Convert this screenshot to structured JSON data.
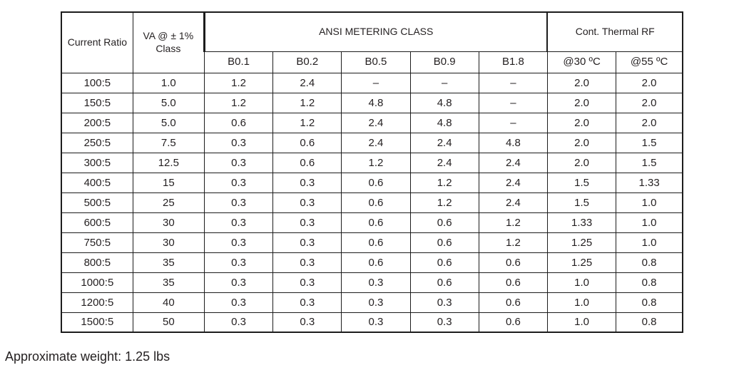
{
  "table": {
    "header": {
      "current_ratio_label": "Current Ratio",
      "va_label_line1": "VA @ ± 1%",
      "va_label_line2": "Class",
      "ansi_group_label": "ANSI METERING CLASS",
      "thermal_group_label": "Cont. Thermal RF",
      "ansi_columns": [
        "B0.1",
        "B0.2",
        "B0.5",
        "B0.9",
        "B1.8"
      ],
      "thermal_columns": [
        "@30 ºC",
        "@55 ºC"
      ]
    },
    "rows": [
      [
        "100:5",
        "1.0",
        "1.2",
        "2.4",
        "–",
        "–",
        "–",
        "2.0",
        "2.0"
      ],
      [
        "150:5",
        "5.0",
        "1.2",
        "1.2",
        "4.8",
        "4.8",
        "–",
        "2.0",
        "2.0"
      ],
      [
        "200:5",
        "5.0",
        "0.6",
        "1.2",
        "2.4",
        "4.8",
        "–",
        "2.0",
        "2.0"
      ],
      [
        "250:5",
        "7.5",
        "0.3",
        "0.6",
        "2.4",
        "2.4",
        "4.8",
        "2.0",
        "1.5"
      ],
      [
        "300:5",
        "12.5",
        "0.3",
        "0.6",
        "1.2",
        "2.4",
        "2.4",
        "2.0",
        "1.5"
      ],
      [
        "400:5",
        "15",
        "0.3",
        "0.3",
        "0.6",
        "1.2",
        "2.4",
        "1.5",
        "1.33"
      ],
      [
        "500:5",
        "25",
        "0.3",
        "0.3",
        "0.6",
        "1.2",
        "2.4",
        "1.5",
        "1.0"
      ],
      [
        "600:5",
        "30",
        "0.3",
        "0.3",
        "0.6",
        "0.6",
        "1.2",
        "1.33",
        "1.0"
      ],
      [
        "750:5",
        "30",
        "0.3",
        "0.3",
        "0.6",
        "0.6",
        "1.2",
        "1.25",
        "1.0"
      ],
      [
        "800:5",
        "35",
        "0.3",
        "0.3",
        "0.6",
        "0.6",
        "0.6",
        "1.25",
        "0.8"
      ],
      [
        "1000:5",
        "35",
        "0.3",
        "0.3",
        "0.3",
        "0.6",
        "0.6",
        "1.0",
        "0.8"
      ],
      [
        "1200:5",
        "40",
        "0.3",
        "0.3",
        "0.3",
        "0.3",
        "0.6",
        "1.0",
        "0.8"
      ],
      [
        "1500:5",
        "50",
        "0.3",
        "0.3",
        "0.3",
        "0.3",
        "0.6",
        "1.0",
        "0.8"
      ]
    ]
  },
  "footer": {
    "note": "Approximate weight: 1.25 lbs"
  },
  "colors": {
    "border": "#1c1c1c",
    "text": "#231f20",
    "background": "#ffffff"
  }
}
